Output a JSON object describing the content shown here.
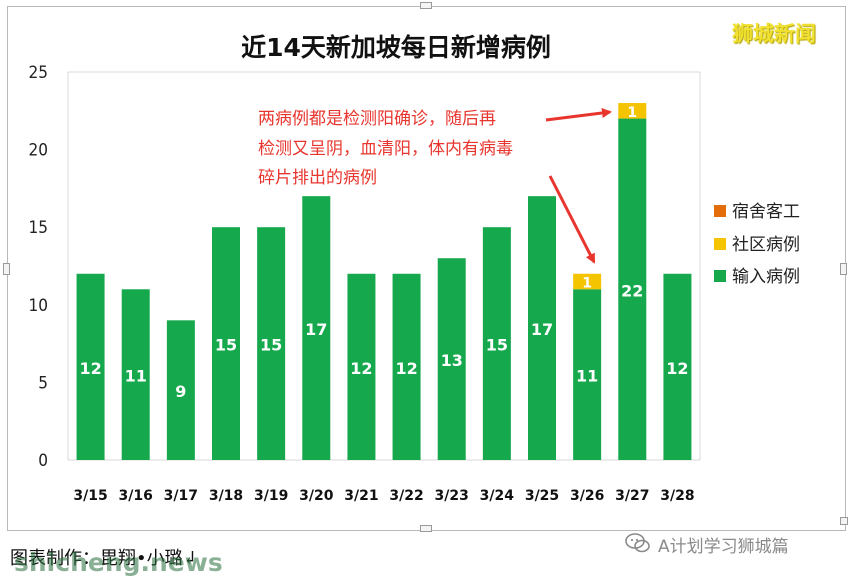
{
  "brand": "狮城新闻",
  "credit": "图表制作：毘翔•小璐↲",
  "watermark": {
    "site": "shicheng.news",
    "account": "A计划学习狮城篇"
  },
  "chart_data": {
    "type": "bar",
    "stacked": true,
    "title": "近14天新加坡每日新增病例",
    "categories": [
      "3/15",
      "3/16",
      "3/17",
      "3/18",
      "3/19",
      "3/20",
      "3/21",
      "3/22",
      "3/23",
      "3/24",
      "3/25",
      "3/26",
      "3/27",
      "3/28"
    ],
    "series": [
      {
        "name": "输入病例",
        "color": "#16a84c",
        "values": [
          12,
          11,
          9,
          15,
          15,
          17,
          12,
          12,
          13,
          15,
          17,
          11,
          22,
          12
        ]
      },
      {
        "name": "社区病例",
        "color": "#f5c400",
        "values": [
          0,
          0,
          0,
          0,
          0,
          0,
          0,
          0,
          0,
          0,
          0,
          1,
          1,
          0
        ]
      },
      {
        "name": "宿舍客工",
        "color": "#e46c0a",
        "values": [
          0,
          0,
          0,
          0,
          0,
          0,
          0,
          0,
          0,
          0,
          0,
          0,
          0,
          0
        ]
      }
    ],
    "ylim": [
      0,
      25
    ],
    "yticks": [
      0,
      5,
      10,
      15,
      20,
      25
    ],
    "legend_position": "right",
    "grid": false,
    "annotation": {
      "lines": [
        "两病例都是检测阳确诊，随后再",
        "检测又呈阴，血清阳，体内有病毒",
        "碎片排出的病例"
      ],
      "color": "#e8352e",
      "arrow_targets": [
        "3/27",
        "3/26"
      ]
    }
  }
}
